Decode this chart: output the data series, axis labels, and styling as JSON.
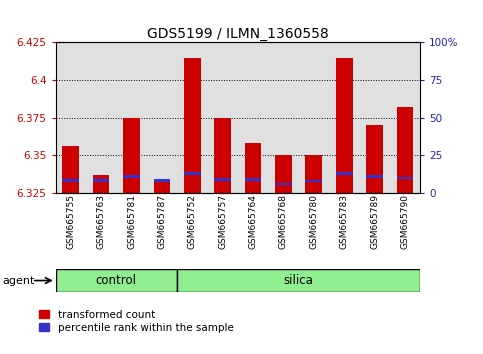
{
  "title": "GDS5199 / ILMN_1360558",
  "samples": [
    "GSM665755",
    "GSM665763",
    "GSM665781",
    "GSM665787",
    "GSM665752",
    "GSM665757",
    "GSM665764",
    "GSM665768",
    "GSM665780",
    "GSM665783",
    "GSM665789",
    "GSM665790"
  ],
  "groups": [
    "control",
    "control",
    "control",
    "control",
    "silica",
    "silica",
    "silica",
    "silica",
    "silica",
    "silica",
    "silica",
    "silica"
  ],
  "red_values": [
    6.356,
    6.337,
    6.375,
    6.332,
    6.415,
    6.375,
    6.358,
    6.35,
    6.35,
    6.415,
    6.37,
    6.382
  ],
  "blue_values": [
    6.3325,
    6.3325,
    6.335,
    6.3325,
    6.337,
    6.333,
    6.333,
    6.33,
    6.332,
    6.337,
    6.335,
    6.334
  ],
  "ymin": 6.325,
  "ymax": 6.425,
  "yticks": [
    6.325,
    6.35,
    6.375,
    6.4,
    6.425
  ],
  "right_yticks": [
    0,
    25,
    50,
    75,
    100
  ],
  "right_ytick_labels": [
    "0",
    "25",
    "50",
    "75",
    "100%"
  ],
  "bar_color_red": "#cc0000",
  "bar_color_blue": "#3333cc",
  "agent_label": "agent",
  "control_label": "control",
  "silica_label": "silica",
  "legend_red": "transformed count",
  "legend_blue": "percentile rank within the sample",
  "bg_color": "#ffffff",
  "xlabel_color": "#cc0000",
  "ylabel_right_color": "#2222bb",
  "title_fontsize": 10,
  "tick_fontsize": 7.5,
  "bar_width": 0.55
}
